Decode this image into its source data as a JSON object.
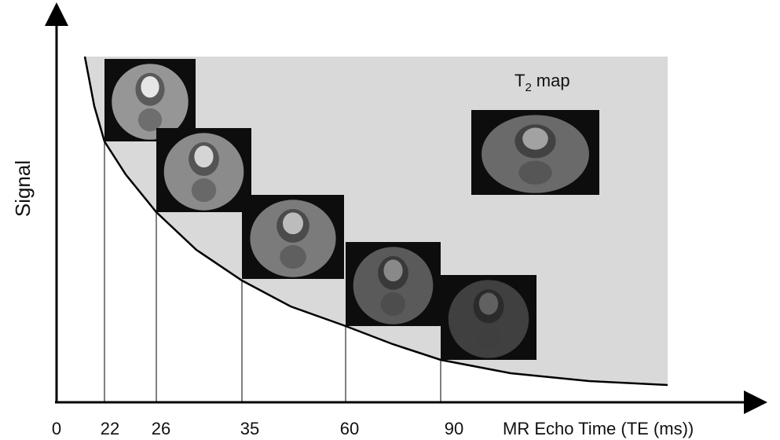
{
  "y_axis": {
    "label": "Signal"
  },
  "x_axis": {
    "label": "MR Echo Time (TE (ms))",
    "ticks": [
      "0",
      "22",
      "26",
      "35",
      "60",
      "90"
    ]
  },
  "t2_map": {
    "symbol": "T",
    "subscript": "2",
    "text": "map"
  }
}
